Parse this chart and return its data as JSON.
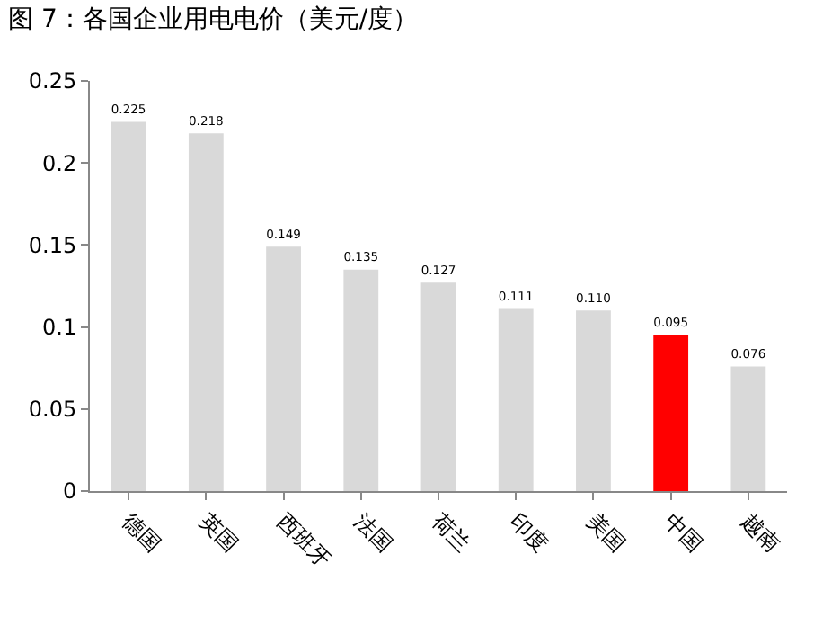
{
  "chart_data": {
    "type": "bar",
    "title": "图 7：各国企业用电电价（美元/度）",
    "categories": [
      "德国",
      "英国",
      "西班牙",
      "法国",
      "荷兰",
      "印度",
      "美国",
      "中国",
      "越南"
    ],
    "values": [
      0.225,
      0.218,
      0.149,
      0.135,
      0.127,
      0.111,
      0.11,
      0.095,
      0.076
    ],
    "value_labels": [
      "0.225",
      "0.218",
      "0.149",
      "0.135",
      "0.127",
      "0.111",
      "0.110",
      "0.095",
      "0.076"
    ],
    "colors": [
      "#d9d9d9",
      "#d9d9d9",
      "#d9d9d9",
      "#d9d9d9",
      "#d9d9d9",
      "#d9d9d9",
      "#d9d9d9",
      "#ff0000",
      "#d9d9d9"
    ],
    "ylim": [
      0,
      0.25
    ],
    "yticks": [
      0,
      0.05,
      {
        "value": 0.1,
        "label": "0.1"
      },
      0.15,
      {
        "value": 0.2,
        "label": "0.2"
      },
      0.25
    ],
    "grid": false,
    "legend": false
  }
}
